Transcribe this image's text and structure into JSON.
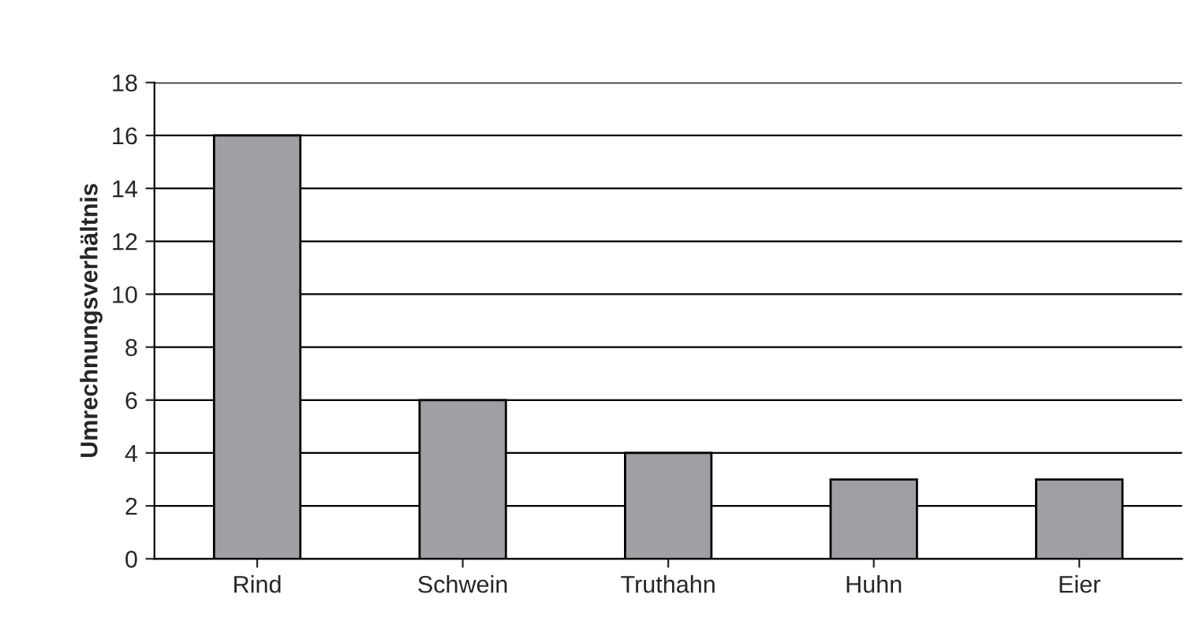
{
  "chart_data": {
    "type": "bar",
    "ylabel": "Umrechnungsverhältnis",
    "categories": [
      "Rind",
      "Schwein",
      "Truthahn",
      "Huhn",
      "Eier"
    ],
    "values": [
      16,
      6,
      4,
      3,
      3
    ],
    "color": "#a0a0a4",
    "ylim": [
      0,
      18
    ],
    "yticks": [
      0,
      2,
      4,
      6,
      8,
      10,
      12,
      14,
      16,
      18
    ],
    "grid": "y",
    "legend": false
  }
}
